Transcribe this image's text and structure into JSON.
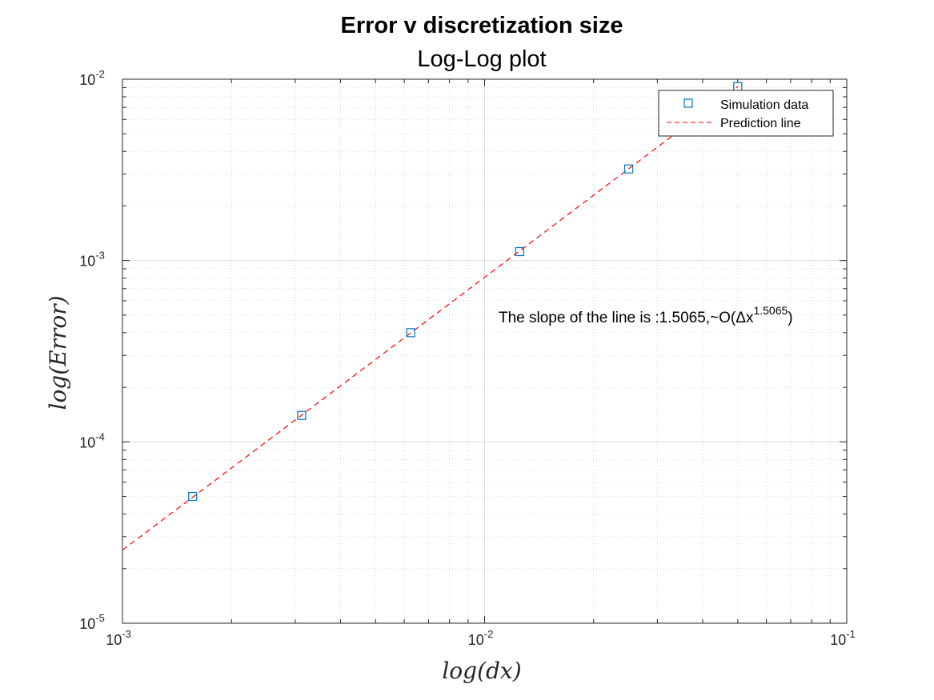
{
  "chart_data": {
    "type": "scatter",
    "title": "Error v discretization size",
    "subtitle": "Log-Log plot",
    "xlabel": "log(dx)",
    "ylabel": "log(Error)",
    "xscale": "log",
    "yscale": "log",
    "xlim": [
      0.001,
      0.1
    ],
    "ylim": [
      1e-05,
      0.01
    ],
    "x_ticks": [
      {
        "value": 0.001,
        "base": "10",
        "exp": "-3"
      },
      {
        "value": 0.01,
        "base": "10",
        "exp": "-2"
      },
      {
        "value": 0.1,
        "base": "10",
        "exp": "-1"
      }
    ],
    "y_ticks": [
      {
        "value": 1e-05,
        "base": "10",
        "exp": "-5"
      },
      {
        "value": 0.0001,
        "base": "10",
        "exp": "-4"
      },
      {
        "value": 0.001,
        "base": "10",
        "exp": "-3"
      },
      {
        "value": 0.01,
        "base": "10",
        "exp": "-2"
      }
    ],
    "grid": true,
    "minor_grid": true,
    "legend_position": "top-right",
    "series": [
      {
        "name": "Simulation data",
        "kind": "markers",
        "marker": "square",
        "color": "#0072BD",
        "x": [
          0.0015625,
          0.003125,
          0.00625,
          0.0125,
          0.025,
          0.05
        ],
        "y": [
          5e-05,
          0.00014,
          0.0004,
          0.00112,
          0.0032,
          0.0091
        ]
      },
      {
        "name": "Prediction line",
        "kind": "line",
        "line_style": "dashed",
        "color": "#ff0000",
        "slope": 1.5065,
        "x": [
          0.001,
          0.05
        ],
        "y": [
          2.53e-05,
          0.0091
        ]
      }
    ],
    "annotation": {
      "text": "The slope of the line is :1.5065,~O(Δx",
      "superscript": "1.5065",
      "suffix": ")"
    }
  }
}
